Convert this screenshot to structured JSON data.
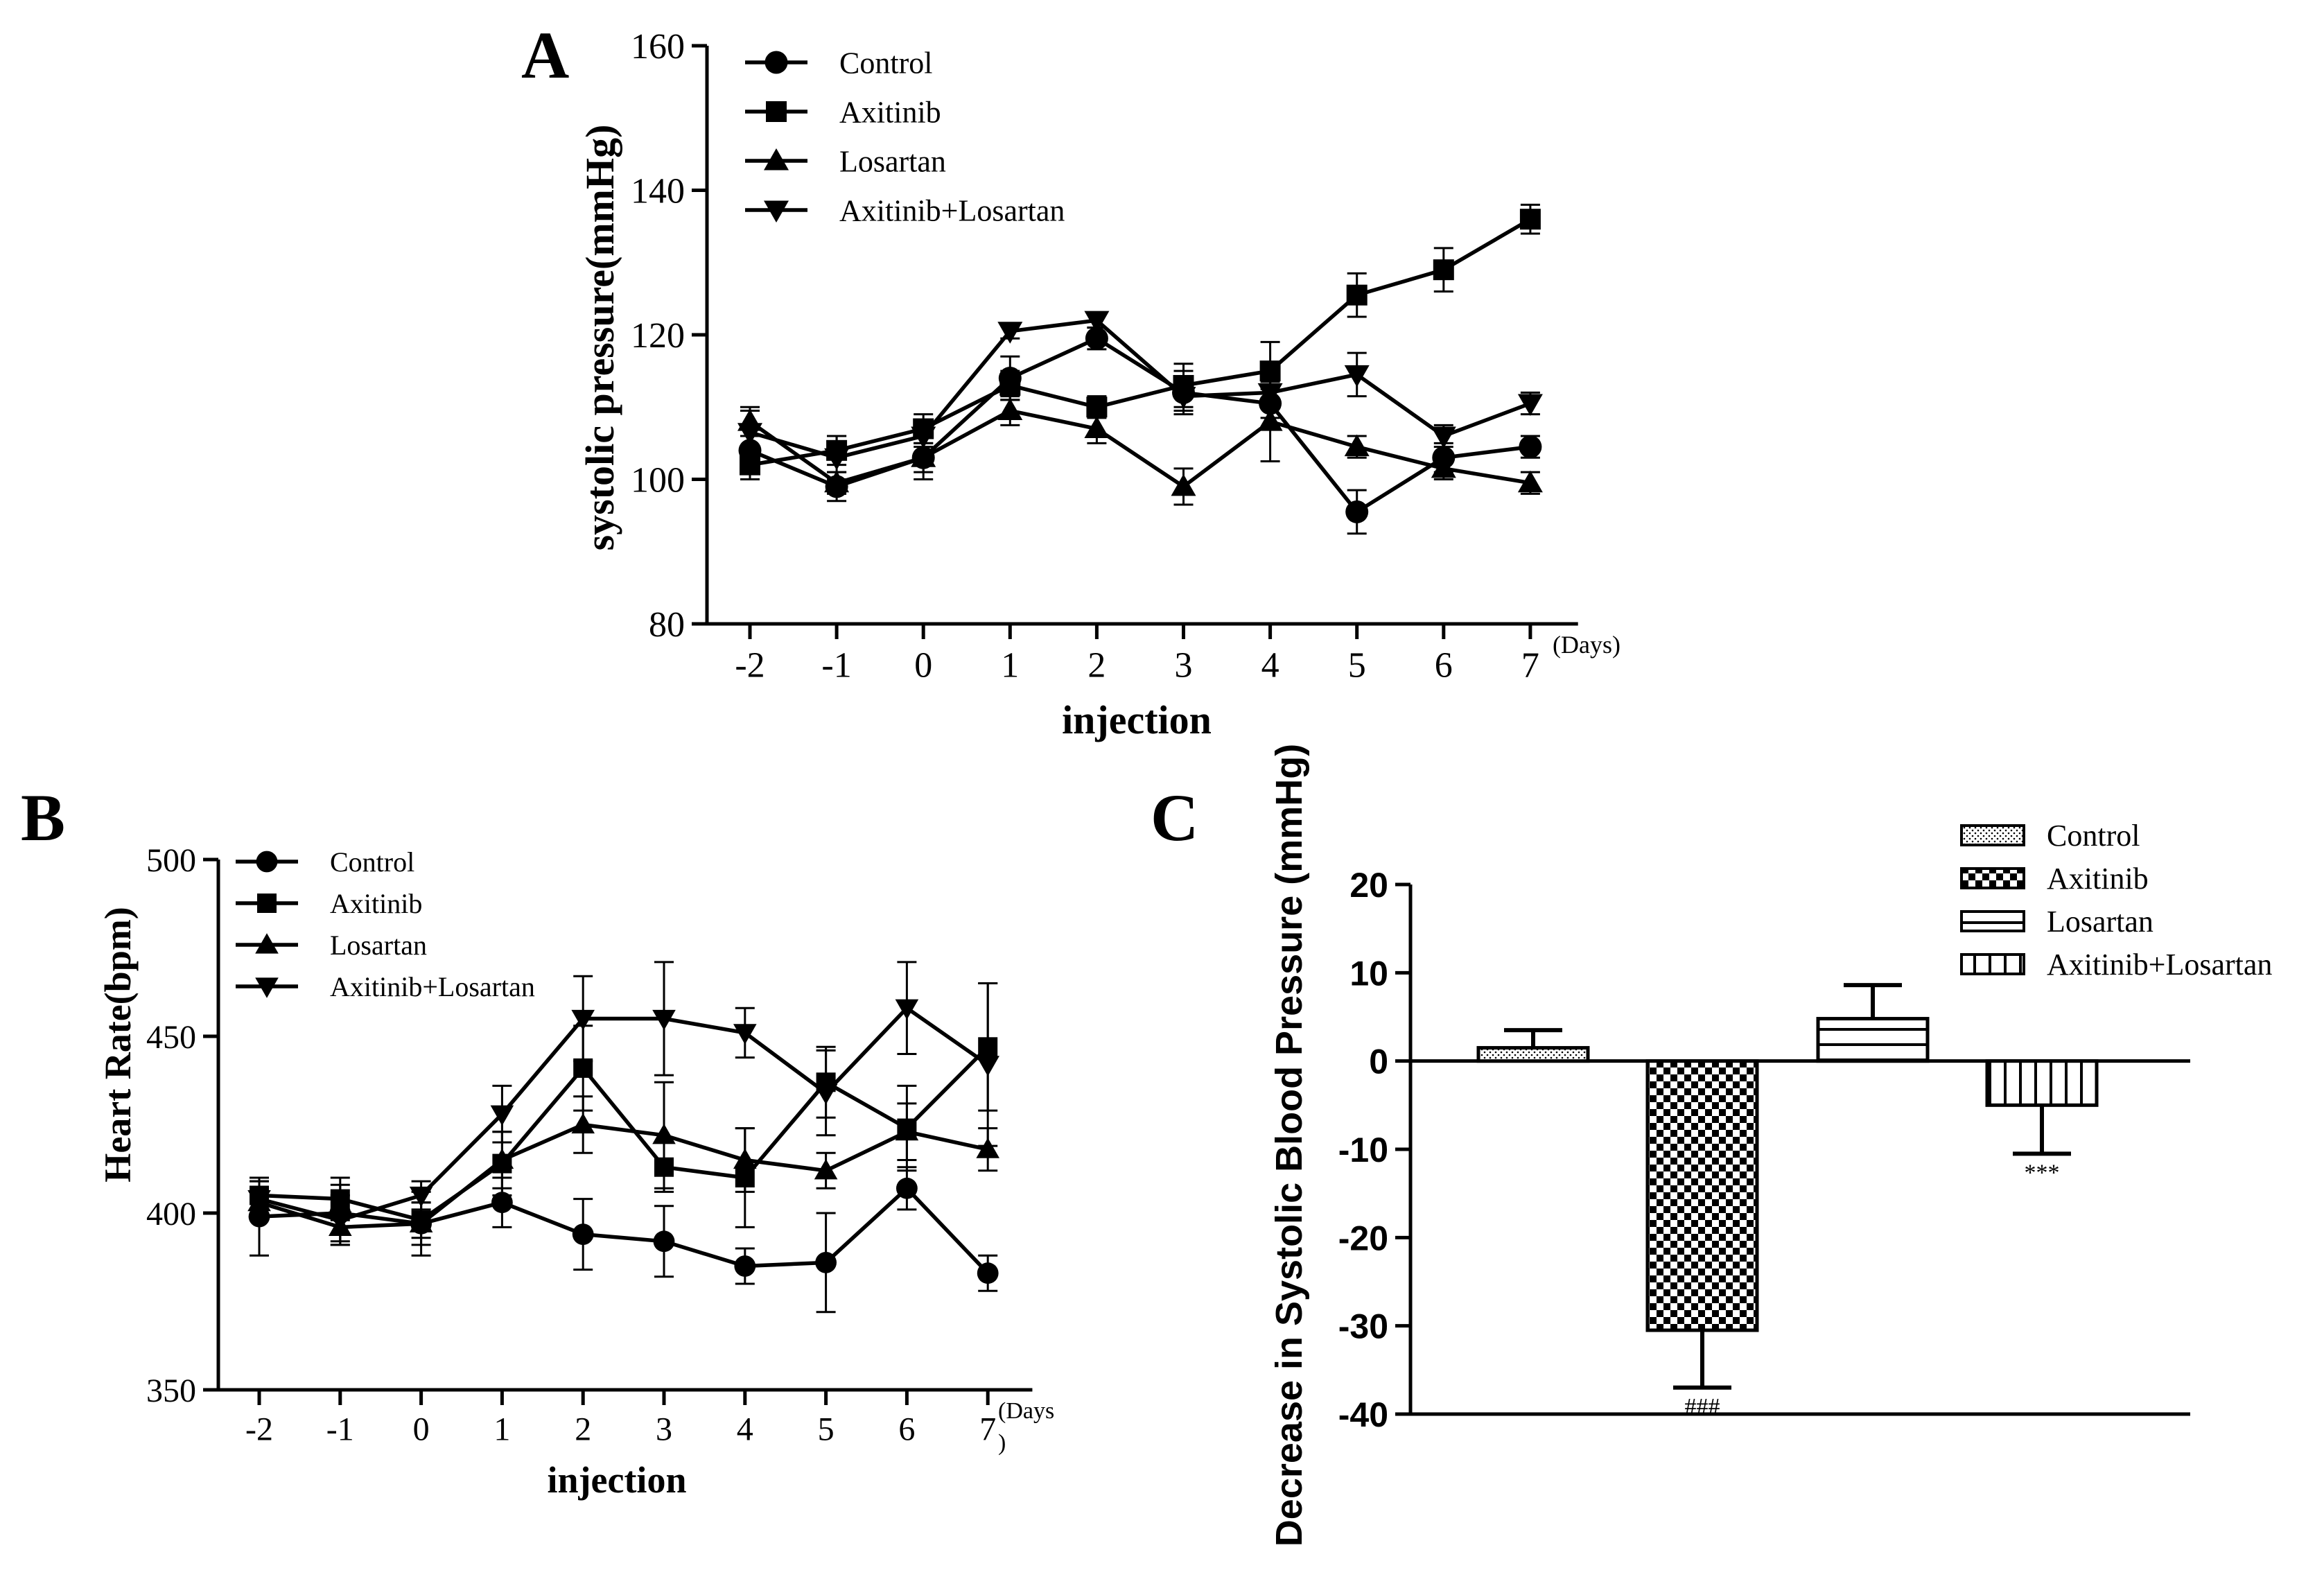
{
  "panel_labels": {
    "a": "A",
    "b": "B",
    "c": "C"
  },
  "series_styles": [
    {
      "name": "Control",
      "marker": "circle"
    },
    {
      "name": "Axitinib",
      "marker": "square"
    },
    {
      "name": "Losartan",
      "marker": "triangle-up"
    },
    {
      "name": "Axitinib+Losartan",
      "marker": "triangle-down"
    }
  ],
  "chart_data": [
    {
      "panel": "A",
      "type": "line",
      "title": "",
      "xlabel": "injection",
      "x_unit": "(Days)",
      "ylabel": "systolic pressure(mmHg)",
      "ylim": [
        80,
        160
      ],
      "yticks": [
        "80",
        "100",
        "120",
        "140",
        "160"
      ],
      "categories": [
        "-2",
        "-1",
        "0",
        "1",
        "2",
        "3",
        "4",
        "5",
        "6",
        "7"
      ],
      "legend_position": "top-left",
      "series": [
        {
          "name": "Control",
          "values": [
            104,
            99,
            103,
            114,
            119.5,
            112,
            110.5,
            95.5,
            103,
            104.5
          ],
          "errors": [
            2,
            2,
            3,
            3,
            1.5,
            3,
            2,
            3,
            2,
            1.5
          ]
        },
        {
          "name": "Axitinib",
          "values": [
            102,
            104,
            107,
            113,
            110,
            113,
            115,
            125.5,
            129,
            136
          ],
          "errors": [
            2,
            2,
            2,
            2,
            1.5,
            3,
            4,
            3,
            3,
            2
          ]
        },
        {
          "name": "Losartan",
          "values": [
            108,
            99.5,
            103,
            109.5,
            107,
            99,
            108,
            104.5,
            101.5,
            99.5
          ],
          "errors": [
            2,
            1.5,
            2,
            2,
            2,
            2.5,
            5.5,
            1.5,
            1.5,
            1.5
          ]
        },
        {
          "name": "Axitinib+Losartan",
          "values": [
            106.5,
            103,
            106,
            120.5,
            122,
            111.5,
            112,
            114.5,
            106,
            110.5
          ],
          "errors": [
            3,
            3,
            1.5,
            1,
            1,
            2,
            2,
            3,
            1.5,
            1.5
          ]
        }
      ]
    },
    {
      "panel": "B",
      "type": "line",
      "title": "",
      "xlabel": "injection",
      "x_unit": "(Days\n)",
      "ylabel": "Heart Rate(bpm)",
      "ylim": [
        350,
        500
      ],
      "yticks": [
        "350",
        "400",
        "450",
        "500"
      ],
      "categories": [
        "-2",
        "-1",
        "0",
        "1",
        "2",
        "3",
        "4",
        "5",
        "6",
        "7"
      ],
      "legend_position": "top-left",
      "series": [
        {
          "name": "Control",
          "values": [
            399,
            400,
            397,
            403,
            394,
            392,
            385,
            386,
            407,
            383
          ],
          "errors": [
            11,
            8,
            9,
            7,
            10,
            10,
            5,
            14,
            6,
            5
          ]
        },
        {
          "name": "Axitinib",
          "values": [
            405,
            404,
            398,
            414,
            441,
            413,
            410,
            437,
            424,
            447
          ],
          "errors": [
            4,
            6,
            5,
            9,
            12,
            7,
            14,
            10,
            12,
            18
          ]
        },
        {
          "name": "Losartan",
          "values": [
            403,
            396,
            397,
            415,
            425,
            422,
            415,
            412,
            423,
            418
          ],
          "errors": [
            4,
            5,
            6,
            8,
            8,
            15,
            9,
            5,
            8,
            6
          ]
        },
        {
          "name": "Axitinib+Losartan",
          "values": [
            404,
            398,
            405,
            428,
            455,
            455,
            451,
            434,
            458,
            442
          ],
          "errors": [
            5,
            7,
            4,
            8,
            12,
            16,
            7,
            12,
            13,
            23
          ]
        }
      ]
    },
    {
      "panel": "C",
      "type": "bar",
      "title": "",
      "xlabel": "",
      "ylabel": "Decrease in Systolic Blood Pressure (mmHg)",
      "ylim": [
        -40,
        20
      ],
      "yticks": [
        "-40",
        "-30",
        "-20",
        "-10",
        "0",
        "10",
        "20"
      ],
      "legend_position": "top-right",
      "bars": [
        {
          "name": "Control",
          "value": 1.5,
          "error": 2.0,
          "annotation": "",
          "pattern": "dots"
        },
        {
          "name": "Axitinib",
          "value": -30.5,
          "error": 6.5,
          "annotation": "###",
          "pattern": "checker"
        },
        {
          "name": "Losartan",
          "value": 4.8,
          "error": 3.8,
          "annotation": "",
          "pattern": "hlines"
        },
        {
          "name": "Axitinib+Losartan",
          "value": -5.0,
          "error": 5.5,
          "annotation": "***",
          "pattern": "vlines"
        }
      ]
    }
  ]
}
